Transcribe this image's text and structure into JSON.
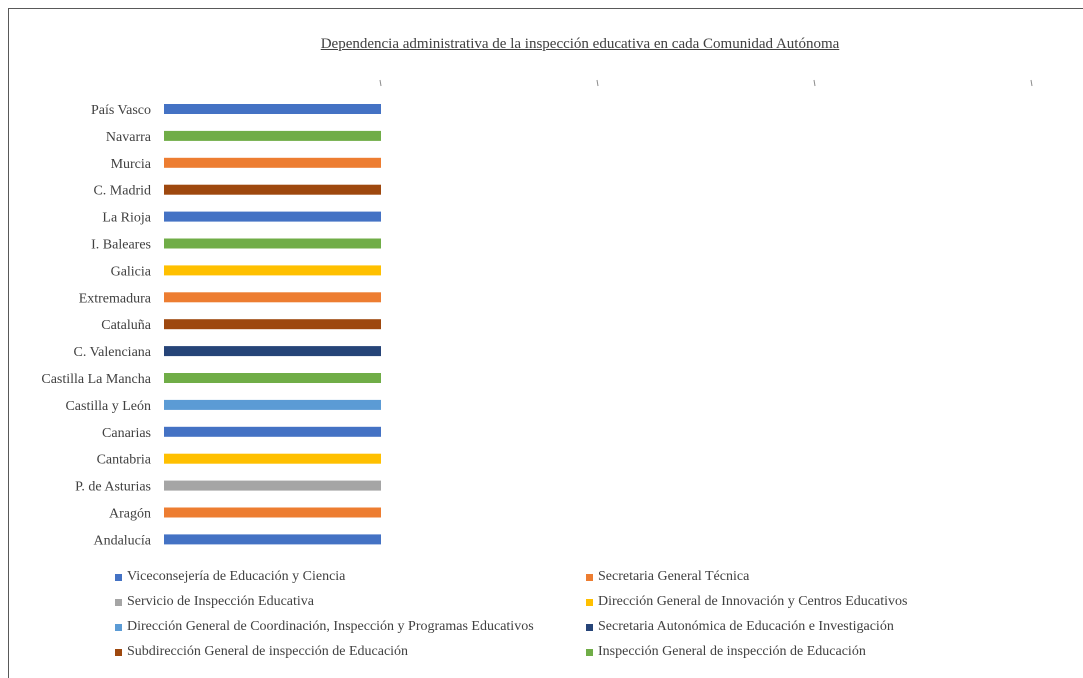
{
  "chart_data": {
    "type": "bar",
    "orientation": "horizontal",
    "title": "Dependencia administrativa de la inspección educativa en cada Comunidad Autónoma",
    "categories": [
      "País Vasco",
      "Navarra",
      "Murcia",
      "C. Madrid",
      "La Rioja",
      "I. Baleares",
      "Galicia",
      "Extremadura",
      "Cataluña",
      "C. Valenciana",
      "Castilla La Mancha",
      "Castilla y León",
      "Canarias",
      "Cantabria",
      "P. de Asturias",
      "Aragón",
      "Andalucía"
    ],
    "values": [
      1,
      1,
      1,
      1,
      1,
      1,
      1,
      1,
      1,
      1,
      1,
      1,
      1,
      1,
      1,
      1,
      1
    ],
    "bar_series": [
      "Viceconsejería de Educación y Ciencia",
      "Inspección General de inspección de Educación",
      "Secretaria General Técnica",
      "Subdirección General de inspección de Educación",
      "Viceconsejería de Educación y Ciencia",
      "Inspección General de inspección de Educación",
      "Dirección General de Innovación y Centros Educativos",
      "Secretaria General Técnica",
      "Subdirección General de inspección de Educación",
      "Secretaria Autonómica de Educación e Investigación",
      "Inspección General de inspección de Educación",
      "Dirección General de Coordinación, Inspección y Programas Educativos",
      "Viceconsejería de Educación y Ciencia",
      "Dirección General de Innovación y Centros Educativos",
      "Servicio de Inspección Educativa",
      "Secretaria General Técnica",
      "Viceconsejería de Educación y Ciencia"
    ],
    "xlim": [
      0,
      4
    ],
    "x_tick_labels": [
      "",
      "",
      "",
      ""
    ],
    "grid": false,
    "legend_position": "bottom",
    "legend": [
      {
        "name": "Viceconsejería de Educación y Ciencia",
        "color": "#4472C4"
      },
      {
        "name": "Secretaria General Técnica",
        "color": "#ED7D31"
      },
      {
        "name": "Servicio de Inspección Educativa",
        "color": "#A5A5A5"
      },
      {
        "name": "Dirección General de Innovación y Centros Educativos",
        "color": "#FFC000"
      },
      {
        "name": "Dirección General de Coordinación, Inspección y Programas Educativos",
        "color": "#5B9BD5"
      },
      {
        "name": "Secretaria Autonómica de Educación e Investigación",
        "color": "#264478"
      },
      {
        "name": "Subdirección General de inspección de Educación",
        "color": "#9E480E"
      },
      {
        "name": "Inspección General de inspección de Educación",
        "color": "#70AD47"
      }
    ]
  }
}
